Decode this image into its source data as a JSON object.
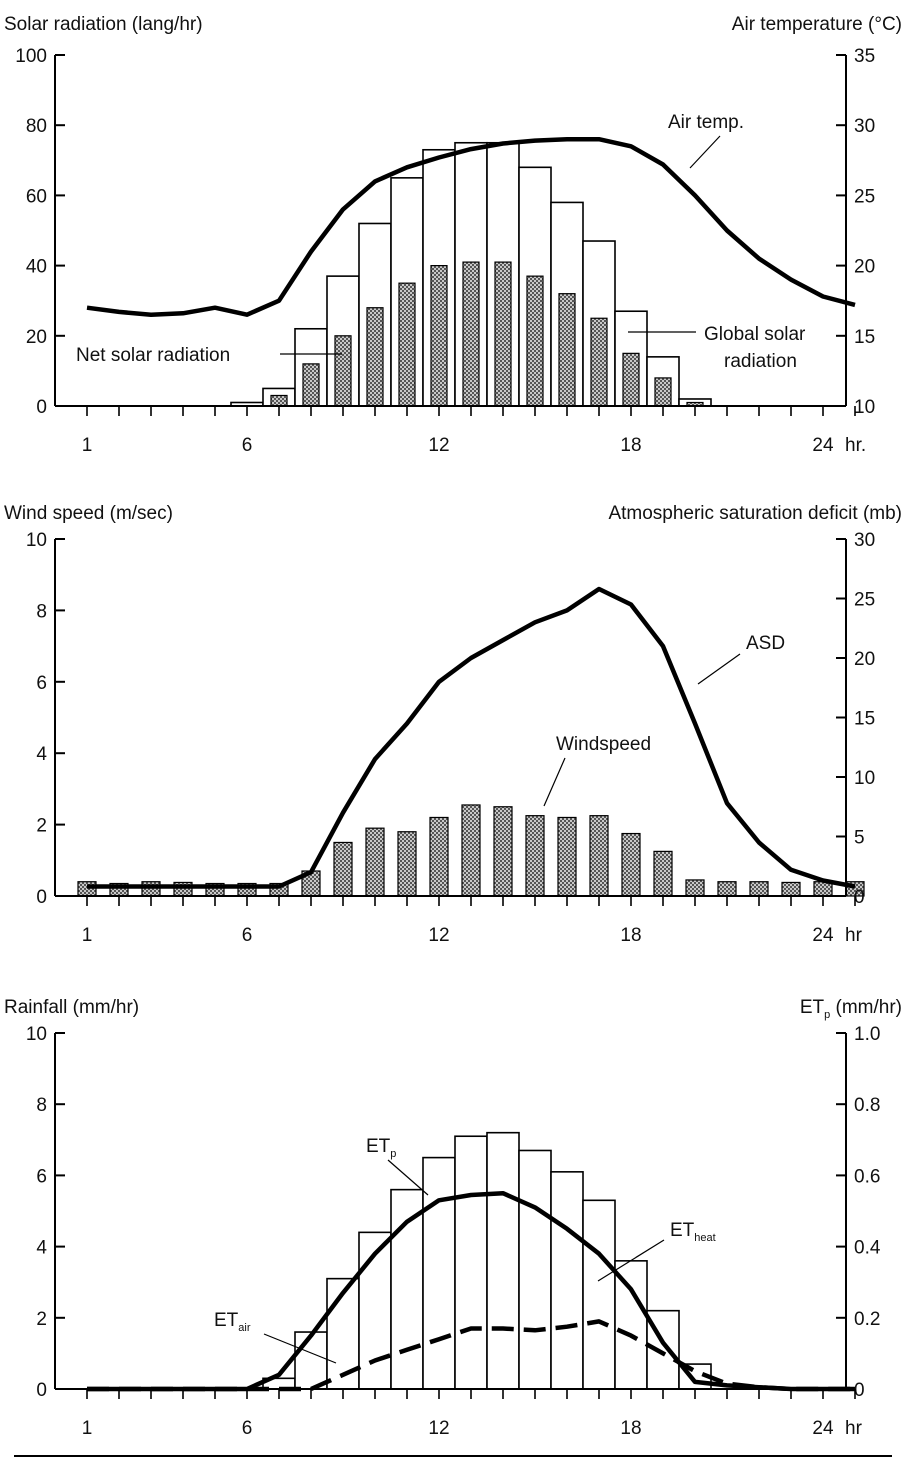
{
  "chart_data": [
    {
      "type": "bar",
      "ylabel": "Solar radiation (lang/hr)",
      "y2label": "Air temperature (°C)",
      "ylim": [
        0,
        100
      ],
      "y2lim": [
        10,
        35
      ],
      "yticks": [
        0,
        20,
        40,
        60,
        80,
        100
      ],
      "y2ticks": [
        10,
        15,
        20,
        25,
        30,
        35
      ],
      "xticks": [
        "1",
        "6",
        "12",
        "18",
        "24"
      ],
      "xunit": "hr.",
      "hours": [
        6,
        7,
        8,
        9,
        10,
        11,
        12,
        13,
        14,
        15,
        16,
        17,
        18,
        19,
        20
      ],
      "global_solar": [
        1,
        5,
        22,
        37,
        52,
        65,
        73,
        75,
        75,
        68,
        58,
        47,
        27,
        14,
        2
      ],
      "net_solar": [
        0,
        3,
        12,
        20,
        28,
        35,
        40,
        41,
        41,
        37,
        32,
        25,
        15,
        8,
        1
      ],
      "air_temp": {
        "x": [
          1,
          2,
          3,
          4,
          5,
          6,
          7,
          8,
          9,
          10,
          11,
          12,
          13,
          14,
          15,
          16,
          17,
          18,
          19,
          20,
          21,
          22,
          23,
          24,
          25
        ],
        "y": [
          17,
          16.7,
          16.5,
          16.6,
          17,
          16.5,
          17.5,
          21,
          24,
          26,
          27,
          27.7,
          28.3,
          28.7,
          28.9,
          29,
          29,
          28.5,
          27.2,
          25,
          22.5,
          20.5,
          19,
          17.8,
          17.2
        ]
      },
      "annotations": {
        "air_temp": "Air temp.",
        "net_solar": "Net solar radiation",
        "global_solar_1": "Global solar",
        "global_solar_2": "radiation"
      }
    },
    {
      "type": "bar",
      "ylabel": "Wind speed (m/sec)",
      "y2label": "Atmospheric saturation deficit (mb)",
      "ylim": [
        0,
        10
      ],
      "y2lim": [
        0,
        30
      ],
      "yticks": [
        0,
        2,
        4,
        6,
        8,
        10
      ],
      "y2ticks": [
        0,
        5,
        10,
        15,
        20,
        25,
        30
      ],
      "xticks": [
        "1",
        "6",
        "12",
        "18",
        "24"
      ],
      "xunit": "hr",
      "windspeed": {
        "x": [
          1,
          2,
          3,
          4,
          5,
          6,
          7,
          8,
          9,
          10,
          11,
          12,
          13,
          14,
          15,
          16,
          17,
          18,
          19,
          20,
          21,
          22,
          23,
          24,
          25
        ],
        "y": [
          0.4,
          0.35,
          0.4,
          0.38,
          0.35,
          0.35,
          0.35,
          0.7,
          1.5,
          1.9,
          1.8,
          2.2,
          2.55,
          2.5,
          2.25,
          2.2,
          2.25,
          1.75,
          1.25,
          0.45,
          0.4,
          0.4,
          0.38,
          0.4,
          0.4
        ]
      },
      "asd": {
        "x": [
          1,
          2,
          3,
          4,
          5,
          6,
          7,
          8,
          9,
          10,
          11,
          12,
          13,
          14,
          15,
          16,
          17,
          18,
          19,
          20,
          21,
          22,
          23,
          24,
          25
        ],
        "y": [
          0.8,
          0.8,
          0.8,
          0.8,
          0.8,
          0.8,
          0.8,
          2,
          7,
          11.5,
          14.5,
          18,
          20,
          21.5,
          23,
          24,
          25.8,
          24.5,
          21,
          14.5,
          7.8,
          4.5,
          2.2,
          1.3,
          0.8
        ]
      },
      "annotations": {
        "asd": "ASD",
        "windspeed": "Windspeed"
      }
    },
    {
      "type": "bar",
      "ylabel": "Rainfall (mm/hr)",
      "y2label_main": "ET",
      "y2label_sub": "p",
      "y2label_unit": " (mm/hr)",
      "ylim": [
        0,
        10
      ],
      "y2lim": [
        0,
        1.0
      ],
      "yticks": [
        0,
        2,
        4,
        6,
        8,
        10
      ],
      "y2ticks": [
        "0",
        "0.2",
        "0.4",
        "0.6",
        "0.8",
        "1.0"
      ],
      "xticks": [
        "1",
        "6",
        "12",
        "18",
        "24"
      ],
      "xunit": "hr",
      "hours": [
        7,
        8,
        9,
        10,
        11,
        12,
        13,
        14,
        15,
        16,
        17,
        18,
        19,
        20
      ],
      "rainfall": [
        0.3,
        1.6,
        3.1,
        4.4,
        5.6,
        6.5,
        7.1,
        7.2,
        6.7,
        6.1,
        5.3,
        3.6,
        2.2,
        0.7
      ],
      "et_heat": {
        "x": [
          1,
          2,
          3,
          4,
          5,
          6,
          7,
          8,
          9,
          10,
          11,
          12,
          13,
          14,
          15,
          16,
          17,
          18,
          19,
          20,
          21,
          22,
          23,
          24,
          25
        ],
        "y": [
          0,
          0,
          0,
          0,
          0,
          0,
          0.04,
          0.15,
          0.27,
          0.38,
          0.47,
          0.53,
          0.545,
          0.55,
          0.51,
          0.45,
          0.38,
          0.28,
          0.13,
          0.02,
          0.01,
          0.005,
          0,
          0,
          0
        ]
      },
      "et_air": {
        "x": [
          1,
          2,
          3,
          4,
          5,
          6,
          7,
          8,
          9,
          10,
          11,
          12,
          13,
          14,
          15,
          16,
          17,
          18,
          19,
          20,
          21,
          22,
          23,
          24,
          25
        ],
        "y": [
          0,
          0,
          0,
          0,
          0,
          0,
          0,
          0,
          0.04,
          0.08,
          0.11,
          0.14,
          0.17,
          0.17,
          0.165,
          0.175,
          0.19,
          0.15,
          0.1,
          0.05,
          0.015,
          0.005,
          0,
          0,
          0
        ]
      },
      "annotations": {
        "etp_main": "ET",
        "etp_sub": "p",
        "etheat_main": "ET",
        "etheat_sub": "heat",
        "etair_main": "ET",
        "etair_sub": "air"
      }
    }
  ]
}
